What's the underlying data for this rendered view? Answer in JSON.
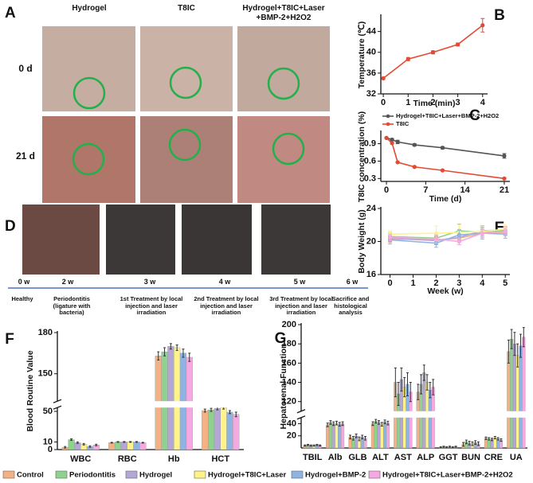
{
  "photo_panel": {
    "label": "A",
    "columns": [
      "Hydrogel",
      "T8IC",
      "Hydrogel+T8IC+Laser +BMP-2+H2O2"
    ],
    "rows": [
      "0 d",
      "21 d"
    ]
  },
  "timeline": {
    "label": "D",
    "weeks": [
      "0 w",
      "2 w",
      "3 w",
      "4 w",
      "5 w",
      "6 w"
    ],
    "stages": [
      "Healthy",
      "Periodontitis (ligature with bacteria)",
      "1st Treatment by local injection and laser irradiation",
      "2nd Treatment by local injection and laser irradiation",
      "3rd Treatment by local injection and laser irradiation",
      "Sacrifice and histological analysis"
    ]
  },
  "legend": [
    {
      "name": "Control",
      "color": "#f4b183"
    },
    {
      "name": "Periodontitis",
      "color": "#8fd18f"
    },
    {
      "name": "Hydrogel",
      "color": "#b4a7d6"
    },
    {
      "name": "Hydrogel+T8IC+Laser",
      "color": "#fff38a"
    },
    {
      "name": "Hydrogel+BMP-2",
      "color": "#8fb4e3"
    },
    {
      "name": "Hydrogel+T8IC+Laser+BMP-2+H2O2",
      "color": "#f6a8e0"
    }
  ],
  "chart_data": [
    {
      "type": "line",
      "label": "B",
      "xlabel": "Time (min)",
      "ylabel": "Temperature (℃)",
      "x": [
        0,
        1,
        2,
        3,
        4
      ],
      "values": [
        35.0,
        38.7,
        40.0,
        41.5,
        45.2
      ],
      "errors": [
        0.2,
        0.3,
        0.3,
        0.3,
        1.3
      ],
      "color": "#e34a33",
      "xlim": [
        -0.1,
        4.2
      ],
      "xticks": [
        0,
        1,
        2,
        3,
        4
      ],
      "ylim": [
        32,
        47
      ],
      "yticks": [
        32,
        36,
        40,
        44
      ]
    },
    {
      "type": "line",
      "label": "C",
      "xlabel": "Time (d)",
      "ylabel": "T8IC concentration (%)",
      "x": [
        0,
        1,
        2,
        5,
        10,
        21
      ],
      "series": [
        {
          "name": "Hydrogel+T8IC+Laser+BMP-2+H2O2",
          "color": "#555555",
          "values": [
            1.0,
            0.97,
            0.93,
            0.88,
            0.83,
            0.69
          ],
          "errors": [
            0.01,
            0.02,
            0.03,
            0.02,
            0.02,
            0.04
          ]
        },
        {
          "name": "T8IC",
          "color": "#e34a33",
          "values": [
            1.0,
            0.91,
            0.58,
            0.5,
            0.44,
            0.3
          ],
          "errors": [
            0.01,
            0.01,
            0.01,
            0.01,
            0.01,
            0.01
          ]
        }
      ],
      "xlim": [
        -1,
        22
      ],
      "xticks": [
        0,
        7,
        14,
        21
      ],
      "ylim": [
        0.25,
        1.1
      ],
      "yticks": [
        0.3,
        0.6,
        0.9
      ]
    },
    {
      "type": "line",
      "label": "E",
      "xlabel": "Week (w)",
      "ylabel": "Body Weight (g)",
      "x": [
        0,
        2,
        3,
        4,
        5
      ],
      "series": [
        {
          "values": [
            20.3,
            20.2,
            20.4,
            21.0,
            21.1
          ],
          "errors": [
            0.4,
            0.5,
            0.4,
            0.5,
            0.4
          ]
        },
        {
          "values": [
            20.6,
            20.4,
            21.3,
            21.1,
            21.3
          ],
          "errors": [
            0.5,
            0.6,
            0.8,
            0.6,
            0.5
          ]
        },
        {
          "values": [
            20.4,
            20.1,
            20.5,
            21.3,
            21.4
          ],
          "errors": [
            0.4,
            0.5,
            0.5,
            0.6,
            0.4
          ]
        },
        {
          "values": [
            20.9,
            21.0,
            21.1,
            21.2,
            21.5
          ],
          "errors": [
            0.4,
            0.9,
            0.9,
            0.6,
            0.5
          ]
        },
        {
          "values": [
            20.2,
            19.8,
            20.8,
            21.0,
            20.9
          ],
          "errors": [
            0.5,
            0.5,
            0.6,
            0.7,
            0.5
          ]
        },
        {
          "values": [
            20.5,
            20.3,
            20.0,
            21.0,
            21.2
          ],
          "errors": [
            0.4,
            0.5,
            0.4,
            0.5,
            0.4
          ]
        }
      ],
      "xlim": [
        -0.4,
        5.2
      ],
      "xticks": [
        0,
        1,
        2,
        3,
        4,
        5
      ],
      "ylim": [
        16,
        24
      ],
      "yticks": [
        16,
        20,
        24
      ]
    },
    {
      "type": "bar",
      "label": "F",
      "ylabel": "Blood Routine Value",
      "categories": [
        "WBC",
        "RBC",
        "Hb",
        "HCT"
      ],
      "series": [
        {
          "values": [
            3,
            9,
            163,
            51
          ],
          "errors": [
            1,
            0.5,
            3,
            2
          ]
        },
        {
          "values": [
            13,
            10,
            166,
            52
          ],
          "errors": [
            1,
            0.5,
            3,
            2
          ]
        },
        {
          "values": [
            9,
            10,
            170,
            54
          ],
          "errors": [
            1,
            0.5,
            2,
            2
          ]
        },
        {
          "values": [
            7,
            10,
            169,
            55
          ],
          "errors": [
            1,
            0.5,
            2,
            2
          ]
        },
        {
          "values": [
            4,
            10,
            165,
            49
          ],
          "errors": [
            1,
            0.5,
            3,
            2
          ]
        },
        {
          "values": [
            6,
            9,
            162,
            46
          ],
          "errors": [
            1,
            0.5,
            3,
            3
          ]
        }
      ],
      "ylim": [
        0,
        180
      ],
      "ybreak": [
        55,
        130
      ],
      "yticks": [
        0,
        10,
        50,
        150,
        180
      ]
    },
    {
      "type": "bar",
      "label": "G",
      "ylabel": "Hepatorenal Function",
      "categories": [
        "TBIL",
        "Alb",
        "GLB",
        "ALT",
        "AST",
        "ALP",
        "GGT",
        "BUN",
        "CRE",
        "UA"
      ],
      "series": [
        {
          "values": [
            4,
            38,
            18,
            40,
            140,
            130,
            1,
            6,
            16,
            172
          ],
          "errors": [
            1,
            3,
            3,
            3,
            15,
            8,
            1,
            3,
            2,
            12
          ]
        },
        {
          "values": [
            5,
            42,
            16,
            44,
            128,
            138,
            2,
            10,
            15,
            185
          ],
          "errors": [
            1,
            3,
            3,
            3,
            12,
            10,
            1,
            3,
            2,
            10
          ]
        },
        {
          "values": [
            4,
            40,
            20,
            42,
            143,
            150,
            1,
            8,
            14,
            180
          ],
          "errors": [
            1,
            3,
            3,
            3,
            12,
            8,
            1,
            3,
            2,
            12
          ]
        },
        {
          "values": [
            4,
            41,
            15,
            39,
            135,
            140,
            2,
            7,
            17,
            168
          ],
          "errors": [
            1,
            3,
            3,
            3,
            10,
            8,
            1,
            3,
            2,
            12
          ]
        },
        {
          "values": [
            5,
            39,
            18,
            43,
            138,
            132,
            1,
            9,
            15,
            178
          ],
          "errors": [
            1,
            3,
            3,
            3,
            12,
            8,
            1,
            3,
            2,
            12
          ]
        },
        {
          "values": [
            4,
            40,
            16,
            41,
            130,
            135,
            2,
            7,
            13,
            187
          ],
          "errors": [
            1,
            3,
            3,
            3,
            10,
            8,
            1,
            3,
            2,
            10
          ]
        }
      ],
      "ylim": [
        0,
        200
      ],
      "ybreak": [
        50,
        110
      ],
      "yticks": [
        20,
        40,
        120,
        140,
        160,
        180,
        200
      ]
    }
  ]
}
